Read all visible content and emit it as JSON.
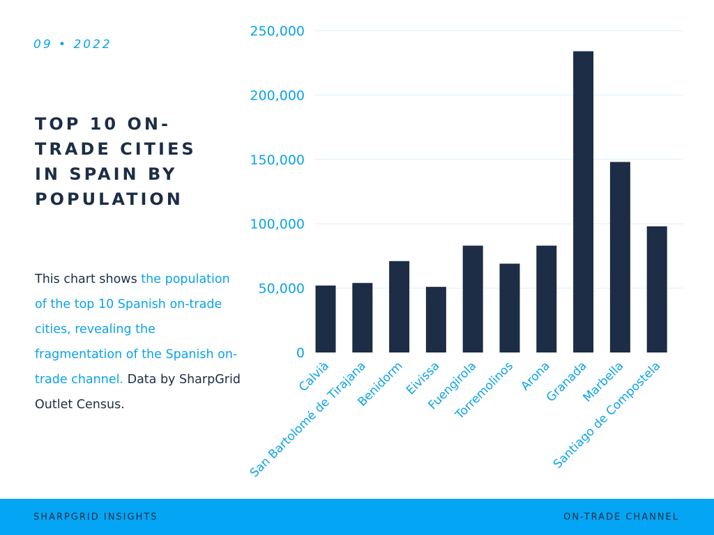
{
  "header": {
    "date": "09 • 2022",
    "title": "TOP 10 ON-TRADE CITIES IN SPAIN BY POPULATION"
  },
  "description": {
    "part1": "This chart shows ",
    "highlight": "the population of the top 10 Spanish on-trade cities, revealing the fragmentation of the Spanish on-trade channel.",
    "part2": " Data by SharpGrid Outlet Census."
  },
  "footer": {
    "left": "SHARPGRID INSIGHTS",
    "right": "ON-TRADE CHANNEL"
  },
  "colors": {
    "bar": "#1c2d45",
    "accent": "#0aa2ec",
    "grid": "#d8eef9",
    "footer_bg": "#04a5f4"
  },
  "chart_data": {
    "type": "bar",
    "categories": [
      "Calvià",
      "San Bartolomé de Tirajana",
      "Benidorm",
      "Eivissa",
      "Fuengirola",
      "Torremolinos",
      "Arona",
      "Granada",
      "Marbella",
      "Santiago de Compostela"
    ],
    "values": [
      52000,
      54000,
      71000,
      51000,
      83000,
      69000,
      83000,
      234000,
      148000,
      98000
    ],
    "ylim": [
      0,
      250000
    ],
    "yticks": [
      0,
      50000,
      100000,
      150000,
      200000,
      250000
    ],
    "ytick_labels": [
      "0",
      "50,000",
      "100,000",
      "150,000",
      "200,000",
      "250,000"
    ],
    "grid": true,
    "xlabel": "",
    "ylabel": ""
  }
}
